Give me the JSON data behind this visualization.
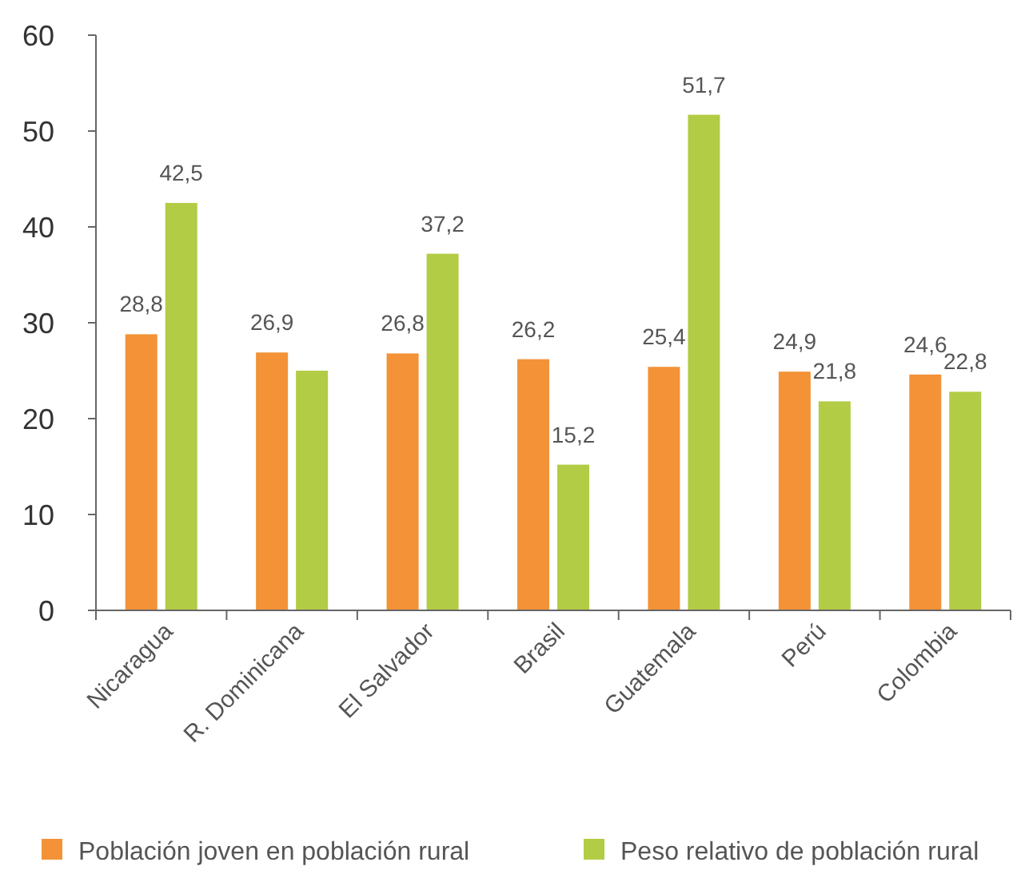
{
  "chart_data": {
    "type": "bar",
    "categories": [
      "Nicaragua",
      "R. Dominicana",
      "El Salvador",
      "Brasil",
      "Guatemala",
      "Perú",
      "Colombia"
    ],
    "series": [
      {
        "name": "Población joven en población rural",
        "color": "#f39237",
        "values": [
          28.8,
          26.9,
          26.8,
          26.2,
          25.4,
          24.9,
          24.6
        ],
        "value_labels": [
          "28,8",
          "26,9",
          "26,8",
          "26,2",
          "25,4",
          "24,9",
          "24,6"
        ]
      },
      {
        "name": "Peso relativo de población rural",
        "color": "#b2cc45",
        "values": [
          42.5,
          25.0,
          37.2,
          15.2,
          51.7,
          21.8,
          22.8
        ],
        "value_labels": [
          "42,5",
          null,
          "37,2",
          "15,2",
          "51,7",
          "21,8",
          "22,8"
        ]
      }
    ],
    "ylim": [
      0,
      60
    ],
    "yticks": [
      0,
      10,
      20,
      30,
      40,
      50,
      60
    ],
    "grid": false,
    "legend": "bottom"
  }
}
